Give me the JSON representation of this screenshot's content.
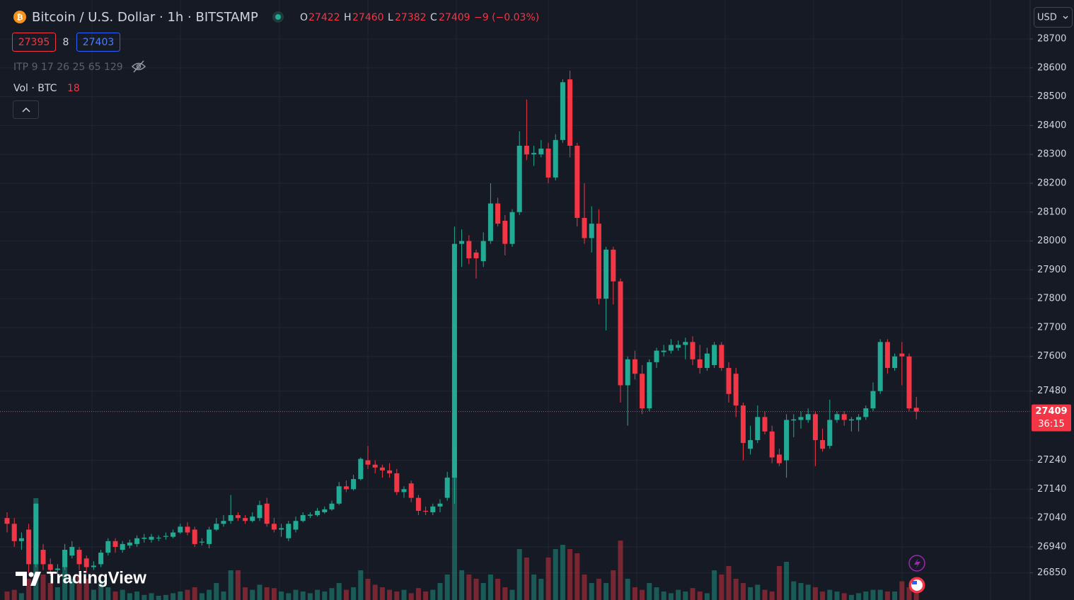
{
  "chart_data": {
    "type": "candlestick",
    "title": "Bitcoin / U.S. Dollar · 1h · BITSTAMP",
    "ohlc_labels": [
      "O",
      "H",
      "L",
      "C"
    ],
    "change": "−9 (−0.03%)",
    "bid": 27395,
    "spread": 8,
    "ask": 27403,
    "indicator": "ITP 9 17 26 25 65 129",
    "volume_label": "Vol · BTC",
    "currency": "USD",
    "countdown": "36:15",
    "logo": "TradingView",
    "up_color": "#22ab94",
    "down_color": "#f23645",
    "grid": true,
    "ylim": [
      26756,
      28835
    ],
    "yticks": [
      28700,
      28600,
      28500,
      28400,
      28300,
      28200,
      28100,
      28000,
      27900,
      27800,
      27700,
      27600,
      27480,
      27240,
      27140,
      27040,
      26940,
      26850
    ],
    "open": [
      27040,
      27020,
      26960,
      27000,
      26880,
      26930,
      26880,
      26860,
      26870,
      26910,
      26930,
      26900,
      26870,
      26880,
      26920,
      26960,
      26930,
      26945,
      26950,
      26968,
      26965,
      26970,
      26975,
      26975,
      26990,
      27010,
      27000,
      26955,
      26950,
      27000,
      27020,
      27030,
      27050,
      27040,
      27030,
      27040,
      27090,
      27020,
      27000,
      26970,
      27000,
      27030,
      27048,
      27050,
      27060,
      27070,
      27090,
      27150,
      27140,
      27175,
      27240,
      27225,
      27215,
      27205,
      27195,
      27130,
      27160,
      27110,
      27065,
      27060,
      27080,
      27110,
      27180,
      27990,
      28000,
      27960,
      27930,
      28000,
      28130,
      28070,
      27990,
      28100,
      28330,
      28300,
      28300,
      28320,
      28220,
      28350,
      28560,
      28330,
      28080,
      28010,
      28060,
      27800,
      27970,
      27860,
      27500,
      27590,
      27540,
      27420,
      27580,
      27615,
      27620,
      27630,
      27640,
      27650,
      27590,
      27560,
      27570,
      27640,
      27560,
      27540,
      27430,
      27280,
      27310,
      27390,
      27340,
      27260,
      27240,
      27378,
      27380,
      27380,
      27400,
      27310,
      27290,
      27380,
      27400,
      27378,
      27380,
      27390,
      27420,
      27480,
      27650,
      27560,
      27610,
      27600,
      27422
    ],
    "high": [
      27060,
      27040,
      26990,
      27020,
      27090,
      26950,
      26900,
      26880,
      26950,
      26960,
      26940,
      26910,
      26890,
      26930,
      26970,
      26970,
      26960,
      26965,
      26980,
      26985,
      26985,
      26980,
      26990,
      27000,
      27020,
      27025,
      27010,
      26970,
      27010,
      27040,
      27050,
      27120,
      27060,
      27050,
      27060,
      27100,
      27110,
      27040,
      27020,
      27030,
      27045,
      27060,
      27060,
      27075,
      27080,
      27100,
      27165,
      27170,
      27190,
      27250,
      27290,
      27240,
      27225,
      27230,
      27210,
      27150,
      27170,
      27120,
      27080,
      27090,
      27105,
      27200,
      28050,
      28040,
      28020,
      27970,
      28030,
      28200,
      28150,
      28090,
      28110,
      28380,
      28490,
      28330,
      28350,
      28340,
      28370,
      28560,
      28590,
      28340,
      28200,
      28120,
      28110,
      27980,
      27980,
      27870,
      27600,
      27620,
      27570,
      27590,
      27630,
      27640,
      27660,
      27655,
      27665,
      27670,
      27640,
      27630,
      27650,
      27650,
      27580,
      27560,
      27440,
      27360,
      27430,
      27410,
      27360,
      27280,
      27400,
      27400,
      27410,
      27420,
      27410,
      27350,
      27450,
      27410,
      27410,
      27390,
      27400,
      27430,
      27510,
      27660,
      27660,
      27610,
      27650,
      27610,
      27460
    ],
    "low": [
      26990,
      26940,
      26930,
      26850,
      26870,
      26860,
      26840,
      26840,
      26860,
      26900,
      26860,
      26850,
      26860,
      26870,
      26910,
      26920,
      26920,
      26935,
      26940,
      26955,
      26955,
      26960,
      26965,
      26970,
      26985,
      26980,
      26940,
      26945,
      26935,
      26995,
      27010,
      27020,
      27030,
      27020,
      27025,
      27030,
      27010,
      26990,
      26975,
      26960,
      26990,
      27025,
      27040,
      27045,
      27055,
      27065,
      27085,
      27130,
      27135,
      27170,
      27210,
      27195,
      27180,
      27180,
      27120,
      27110,
      27095,
      27050,
      27050,
      27050,
      27060,
      27100,
      27090,
      27910,
      27920,
      27870,
      27910,
      27990,
      28050,
      27950,
      27980,
      28090,
      28280,
      28260,
      28290,
      28200,
      28210,
      28340,
      28290,
      28050,
      27990,
      27960,
      27780,
      27690,
      27780,
      27440,
      27360,
      27520,
      27400,
      27410,
      27560,
      27600,
      27610,
      27620,
      27590,
      27570,
      27540,
      27550,
      27560,
      27550,
      27440,
      27390,
      27240,
      27260,
      27300,
      27330,
      27230,
      27220,
      27180,
      27320,
      27350,
      27370,
      27220,
      27270,
      27280,
      27370,
      27360,
      27340,
      27340,
      27380,
      27410,
      27470,
      27540,
      27550,
      27500,
      27410,
      27382
    ],
    "close": [
      27020,
      26960,
      26970,
      26880,
      27090,
      26880,
      26860,
      26865,
      26930,
      26940,
      26880,
      26870,
      26875,
      26920,
      26960,
      26940,
      26950,
      26955,
      26970,
      26972,
      26975,
      26972,
      26978,
      26990,
      27010,
      26990,
      26950,
      26958,
      27000,
      27020,
      27030,
      27050,
      27040,
      27030,
      27045,
      27085,
      27020,
      27000,
      27005,
      27020,
      27030,
      27050,
      27052,
      27065,
      27070,
      27090,
      27150,
      27140,
      27175,
      27245,
      27225,
      27215,
      27205,
      27195,
      27130,
      27140,
      27110,
      27065,
      27062,
      27080,
      27090,
      27180,
      27990,
      28000,
      27940,
      27940,
      28000,
      28130,
      28060,
      27990,
      28100,
      28330,
      28300,
      28305,
      28320,
      28220,
      28350,
      28550,
      28330,
      28080,
      28010,
      28060,
      27800,
      27970,
      27860,
      27500,
      27590,
      27540,
      27420,
      27580,
      27620,
      27620,
      27640,
      27640,
      27650,
      27590,
      27560,
      27610,
      27640,
      27560,
      27470,
      27430,
      27300,
      27310,
      27390,
      27340,
      27250,
      27230,
      27380,
      27382,
      27390,
      27400,
      27310,
      27280,
      27380,
      27400,
      27380,
      27382,
      27390,
      27420,
      27480,
      27650,
      27560,
      27600,
      27600,
      27420,
      27409
    ],
    "volume": [
      10,
      12,
      8,
      25,
      120,
      30,
      20,
      15,
      40,
      25,
      30,
      25,
      12,
      20,
      15,
      10,
      12,
      8,
      10,
      6,
      8,
      5,
      6,
      8,
      10,
      12,
      15,
      8,
      12,
      20,
      10,
      35,
      35,
      15,
      12,
      18,
      15,
      14,
      10,
      8,
      12,
      10,
      8,
      12,
      10,
      14,
      20,
      12,
      15,
      35,
      25,
      18,
      15,
      12,
      10,
      12,
      8,
      14,
      10,
      12,
      20,
      30,
      180,
      35,
      30,
      25,
      20,
      30,
      25,
      15,
      12,
      60,
      50,
      30,
      25,
      50,
      60,
      65,
      60,
      55,
      30,
      20,
      25,
      20,
      35,
      70,
      25,
      15,
      12,
      20,
      15,
      10,
      8,
      12,
      10,
      14,
      10,
      8,
      35,
      30,
      40,
      25,
      20,
      15,
      18,
      12,
      10,
      40,
      45,
      22,
      20,
      18,
      15,
      10,
      12,
      10,
      8,
      6,
      8,
      10,
      12,
      12,
      10,
      10,
      22,
      15,
      18
    ]
  }
}
